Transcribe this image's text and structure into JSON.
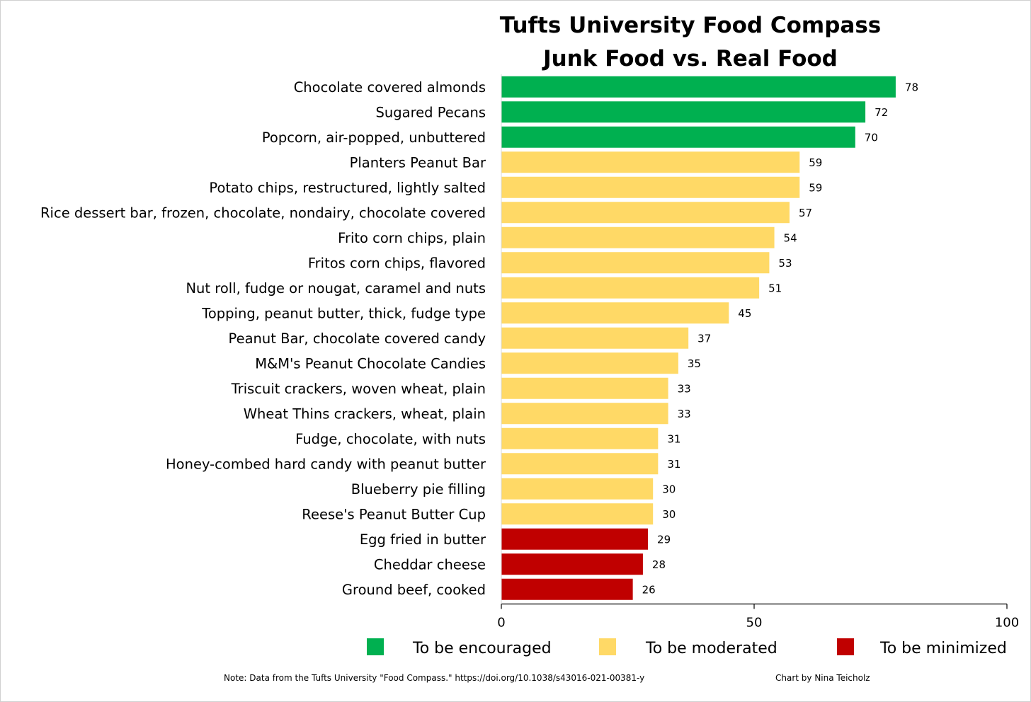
{
  "chart_data": {
    "type": "bar",
    "orientation": "horizontal",
    "title": "Tufts University Food Compass",
    "subtitle": "Junk Food vs. Real Food",
    "categories": [
      "Chocolate covered almonds",
      "Sugared Pecans",
      "Popcorn, air-popped, unbuttered",
      "Planters Peanut Bar",
      "Potato chips, restructured, lightly salted",
      "Rice dessert bar, frozen, chocolate, nondairy, chocolate covered",
      "Frito corn chips, plain",
      "Fritos corn chips, flavored",
      "Nut roll, fudge or nougat, caramel and nuts",
      "Topping, peanut butter, thick, fudge type",
      "Peanut Bar, chocolate covered candy",
      "M&M's Peanut Chocolate Candies",
      "Triscuit crackers, woven wheat, plain",
      "Wheat Thins crackers, wheat, plain",
      "Fudge, chocolate, with nuts",
      "Honey-combed hard candy with peanut butter",
      "Blueberry pie filling",
      "Reese's Peanut Butter Cup",
      "Egg fried in butter",
      "Cheddar cheese",
      "Ground beef, cooked"
    ],
    "values": [
      78,
      72,
      70,
      59,
      59,
      57,
      54,
      53,
      51,
      45,
      37,
      35,
      33,
      33,
      31,
      31,
      30,
      30,
      29,
      28,
      26
    ],
    "groups": [
      "encouraged",
      "encouraged",
      "encouraged",
      "moderated",
      "moderated",
      "moderated",
      "moderated",
      "moderated",
      "moderated",
      "moderated",
      "moderated",
      "moderated",
      "moderated",
      "moderated",
      "moderated",
      "moderated",
      "moderated",
      "moderated",
      "minimized",
      "minimized",
      "minimized"
    ],
    "xlim": [
      0,
      100
    ],
    "xticks": [
      "0",
      "50",
      "100"
    ],
    "grid": false,
    "legend": {
      "placement": "bottom",
      "entries": [
        {
          "key": "encouraged",
          "label": "To be encouraged",
          "color": "#00b050"
        },
        {
          "key": "moderated",
          "label": "To be moderated",
          "color": "#ffd966"
        },
        {
          "key": "minimized",
          "label": "To be minimized",
          "color": "#c00000"
        }
      ]
    },
    "note": "Note:    Data from the Tufts University \"Food Compass.\" https://doi.org/10.1038/s43016-021-00381-y",
    "credit": "Chart by Nina  Teicholz"
  }
}
